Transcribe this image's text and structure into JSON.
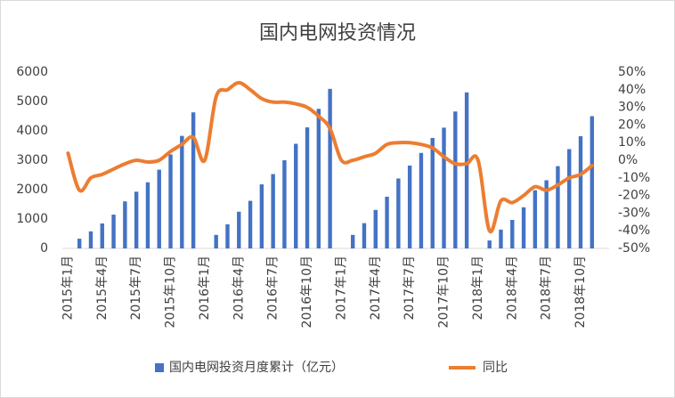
{
  "chart_data": {
    "type": "bar_line",
    "title": "国内电网投资情况",
    "categories": [
      "2015年1月",
      null,
      null,
      "2015年4月",
      null,
      null,
      "2015年7月",
      null,
      null,
      "2015年10月",
      null,
      null,
      "2016年1月",
      null,
      null,
      "2016年4月",
      null,
      null,
      "2016年7月",
      null,
      null,
      "2016年10月",
      null,
      null,
      "2017年1月",
      null,
      null,
      "2017年4月",
      null,
      null,
      "2017年7月",
      null,
      null,
      "2017年10月",
      null,
      null,
      "2018年1月",
      null,
      null,
      "2018年4月",
      null,
      null,
      "2018年7月",
      null,
      null,
      "2018年10月",
      null,
      null
    ],
    "series": [
      {
        "name": "国内电网投资月度累计（亿元）",
        "color": "#4472c4",
        "type": "bar",
        "values": [
          null,
          330,
          580,
          850,
          1150,
          1600,
          1930,
          2250,
          2680,
          3200,
          3830,
          4630,
          null,
          460,
          820,
          1250,
          1620,
          2180,
          2530,
          3000,
          3560,
          4120,
          4750,
          5430,
          null,
          460,
          860,
          1310,
          1760,
          2380,
          2820,
          3250,
          3760,
          4110,
          4660,
          5310,
          null,
          270,
          640,
          970,
          1400,
          1980,
          2320,
          2800,
          3380,
          3820,
          4500,
          null
        ]
      },
      {
        "name": "同比",
        "color": "#ed7d31",
        "type": "line",
        "axis": "y2",
        "values": [
          4,
          -17,
          -10,
          -8,
          -5,
          -2,
          0,
          -1,
          0,
          5,
          9,
          13,
          0,
          36,
          40,
          44,
          40,
          35,
          33,
          33,
          32,
          30,
          25,
          18,
          0,
          0,
          2,
          4,
          9,
          10,
          10,
          9,
          7,
          2,
          -2,
          -2,
          0,
          -40,
          -23,
          -24,
          -20,
          -15,
          -17,
          -14,
          -10,
          -8,
          -3,
          null
        ]
      }
    ],
    "ylim": [
      0,
      6000
    ],
    "yticks": [
      0,
      1000,
      2000,
      3000,
      4000,
      5000,
      6000
    ],
    "y2lim": [
      -50,
      50
    ],
    "y2ticks": [
      {
        "value": -50,
        "label": "-50%"
      },
      {
        "value": -40,
        "label": "-40%"
      },
      {
        "value": -30,
        "label": "-30%"
      },
      {
        "value": -20,
        "label": "-20%"
      },
      {
        "value": -10,
        "label": "-10%"
      },
      {
        "value": 0,
        "label": "0%"
      },
      {
        "value": 10,
        "label": "10%"
      },
      {
        "value": 20,
        "label": "20%"
      },
      {
        "value": 30,
        "label": "30%"
      },
      {
        "value": 40,
        "label": "40%"
      },
      {
        "value": 50,
        "label": "50%"
      }
    ],
    "legend": "bottom"
  }
}
